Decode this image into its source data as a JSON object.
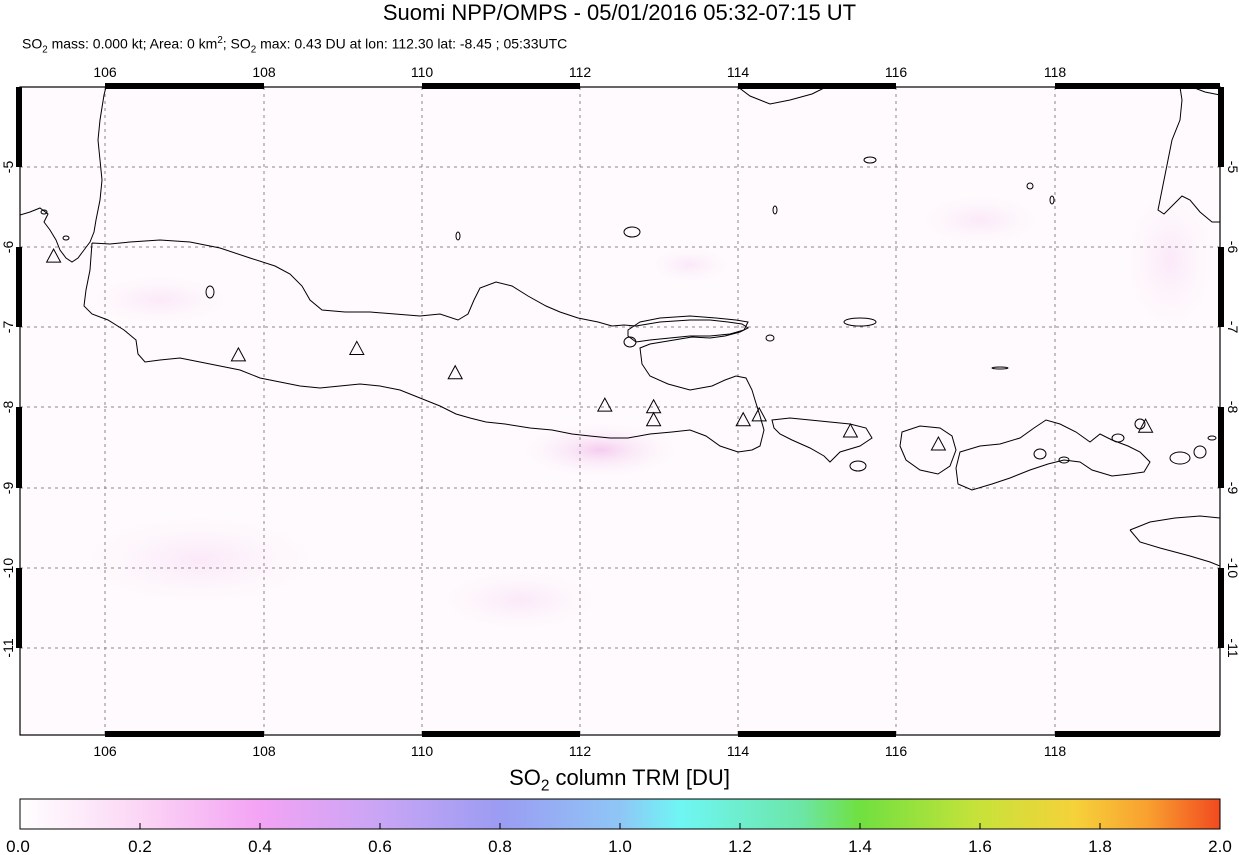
{
  "header": {
    "title": "Suomi NPP/OMPS - 05/01/2016 05:32-07:15 UT",
    "subtitle_parts": {
      "so2": "SO",
      "two": "2",
      "mass": " mass: 0.000 kt; Area: 0 km",
      "sq": "2",
      "semi": "; SO",
      "max": " max: 0.43 DU at lon: 112.30 lat: -8.45 ; 05:33UTC"
    }
  },
  "map": {
    "lon_labels": [
      "106",
      "108",
      "110",
      "112",
      "114",
      "116",
      "118"
    ],
    "lat_labels": [
      "-5",
      "-6",
      "-7",
      "-8",
      "-9",
      "-10",
      "-11"
    ],
    "lon_range": [
      105,
      120
    ],
    "lat_range": [
      -12,
      -4
    ],
    "volcano_icon": "triangle-marker-icon",
    "volcanoes": [
      {
        "lon": 105.42,
        "lat": -6.1
      },
      {
        "lon": 107.73,
        "lat": -7.32
      },
      {
        "lon": 109.21,
        "lat": -7.24
      },
      {
        "lon": 110.44,
        "lat": -7.54
      },
      {
        "lon": 112.31,
        "lat": -7.94
      },
      {
        "lon": 112.92,
        "lat": -7.96
      },
      {
        "lon": 112.92,
        "lat": -8.12
      },
      {
        "lon": 114.04,
        "lat": -8.12
      },
      {
        "lon": 114.24,
        "lat": -8.06
      },
      {
        "lon": 115.38,
        "lat": -8.26
      },
      {
        "lon": 116.48,
        "lat": -8.42
      },
      {
        "lon": 119.07,
        "lat": -8.2
      }
    ]
  },
  "colorbar": {
    "title_prefix": "SO",
    "title_sub": "2",
    "title_suffix": " column TRM [DU]",
    "labels": [
      "0.0",
      "0.2",
      "0.4",
      "0.6",
      "0.8",
      "1.0",
      "1.2",
      "1.4",
      "1.6",
      "1.8",
      "2.0"
    ],
    "colors": [
      "#ffffff",
      "#fbd6f5",
      "#f3a3f4",
      "#c9a5f5",
      "#9b9cf2",
      "#8fc6f6",
      "#6ff6f4",
      "#6ce6a8",
      "#70e040",
      "#c8e23a",
      "#f6d13a",
      "#f8a030",
      "#f24a1f"
    ]
  }
}
